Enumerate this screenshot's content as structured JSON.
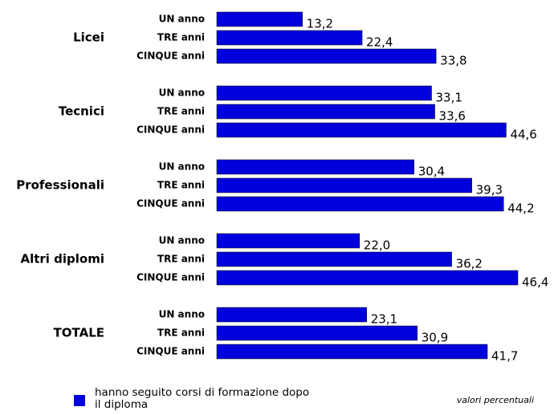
{
  "chart_data": {
    "type": "bar",
    "orientation": "horizontal",
    "groups": [
      "Licei",
      "Tecnici",
      "Professionali",
      "Altri diplomi",
      "TOTALE"
    ],
    "categories": [
      "UN anno",
      "TRE anni",
      "CINQUE anni",
      "UN anno",
      "TRE anni",
      "CINQUE anni",
      "UN anno",
      "TRE anni",
      "CINQUE anni",
      "UN anno",
      "TRE anni",
      "CINQUE anni",
      "UN anno",
      "TRE anni",
      "CINQUE anni"
    ],
    "series": [
      {
        "name": "hanno seguito corsi di formazione dopo il diploma",
        "color": "#0000dd",
        "values": [
          13.2,
          22.4,
          33.8,
          33.1,
          33.6,
          44.6,
          30.4,
          39.3,
          44.2,
          22.0,
          36.2,
          46.4,
          23.1,
          30.9,
          41.7
        ],
        "value_labels": [
          "13,2",
          "22,4",
          "33,8",
          "33,1",
          "33,6",
          "44,6",
          "30,4",
          "39,3",
          "44,2",
          "22,0",
          "36,2",
          "46,4",
          "23,1",
          "30,9",
          "41,7"
        ]
      }
    ],
    "annotation": "valori percentuali"
  }
}
